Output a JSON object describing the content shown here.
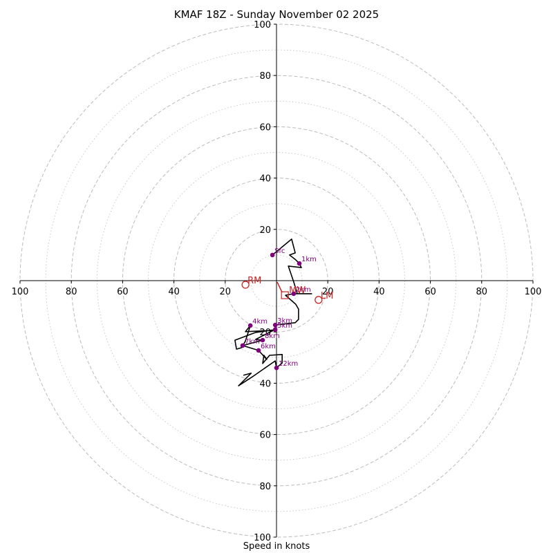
{
  "chart_data": {
    "type": "hodograph",
    "title": "KMAF 18Z - Sunday November 02 2025",
    "xlabel": "Speed in knots",
    "units": "knots",
    "range": [
      0,
      100
    ],
    "ring_major_step": 20,
    "ring_minor_step": 10,
    "tick_labels": [
      "20",
      "40",
      "60",
      "80",
      "100"
    ],
    "colors": {
      "trace": "#000000",
      "height_markers": "#800080",
      "storm_motion": "#cc2222",
      "rings": "#bbbbbb"
    },
    "trace": [
      [
        -1.6,
        10.0
      ],
      [
        5.9,
        16.2
      ],
      [
        7.3,
        10.8
      ],
      [
        5.1,
        10.0
      ],
      [
        7.5,
        8.1
      ],
      [
        8.9,
        6.7
      ],
      [
        9.7,
        5.1
      ],
      [
        4.6,
        5.7
      ],
      [
        6.7,
        -0.5
      ],
      [
        8.1,
        -5.1
      ],
      [
        13.7,
        -5.1
      ],
      [
        6.7,
        -5.1
      ],
      [
        3.5,
        -5.7
      ],
      [
        7.5,
        -9.2
      ],
      [
        8.6,
        -11.1
      ],
      [
        8.6,
        -15.1
      ],
      [
        7.3,
        -16.4
      ],
      [
        -0.5,
        -17.3
      ],
      [
        -0.5,
        -19.1
      ],
      [
        -8.1,
        -20.2
      ],
      [
        -16.2,
        -23.2
      ],
      [
        -15.6,
        -26.7
      ],
      [
        -13.5,
        -26.1
      ],
      [
        -12.1,
        -23.5
      ],
      [
        -10.2,
        -17.5
      ],
      [
        -12.1,
        -19.9
      ],
      [
        -1.3,
        -19.4
      ],
      [
        -8.1,
        -22.9
      ],
      [
        -5.4,
        -23.2
      ],
      [
        -13.2,
        -25.3
      ],
      [
        -7.0,
        -27.2
      ],
      [
        -3.8,
        -30.7
      ],
      [
        -4.9,
        -29.1
      ],
      [
        -5.4,
        -32.3
      ],
      [
        -2.7,
        -29.1
      ],
      [
        2.2,
        -28.8
      ],
      [
        2.2,
        -32.1
      ],
      [
        0.0,
        -34.0
      ],
      [
        -0.5,
        -31.3
      ],
      [
        -9.4,
        -37.5
      ],
      [
        -14.8,
        -41.0
      ],
      [
        -9.9,
        -36.1
      ],
      [
        -12.9,
        -36.9
      ]
    ],
    "height_markers": [
      {
        "label": "Sfc",
        "u": -1.6,
        "v": 10.0
      },
      {
        "label": "1km",
        "u": 8.9,
        "v": 6.7
      },
      {
        "label": "2km",
        "u": 6.7,
        "v": -5.1
      },
      {
        "label": "3km",
        "u": -0.5,
        "v": -17.3
      },
      {
        "label": "5km",
        "u": -0.5,
        "v": -19.1
      },
      {
        "label": "4km",
        "u": -10.2,
        "v": -17.5
      },
      {
        "label": "8km",
        "u": -5.4,
        "v": -23.2
      },
      {
        "label": "7km",
        "u": -13.2,
        "v": -25.3
      },
      {
        "label": "6km",
        "u": -7.0,
        "v": -27.2
      },
      {
        "label": "12km",
        "u": 0.0,
        "v": -34.0
      }
    ],
    "storm_motion": [
      {
        "label": "RM",
        "u": -12.1,
        "v": -1.6
      },
      {
        "label": "LM",
        "u": 16.4,
        "v": -7.5
      },
      {
        "label": "MW",
        "u": 2.2,
        "v": -4.6
      }
    ]
  }
}
